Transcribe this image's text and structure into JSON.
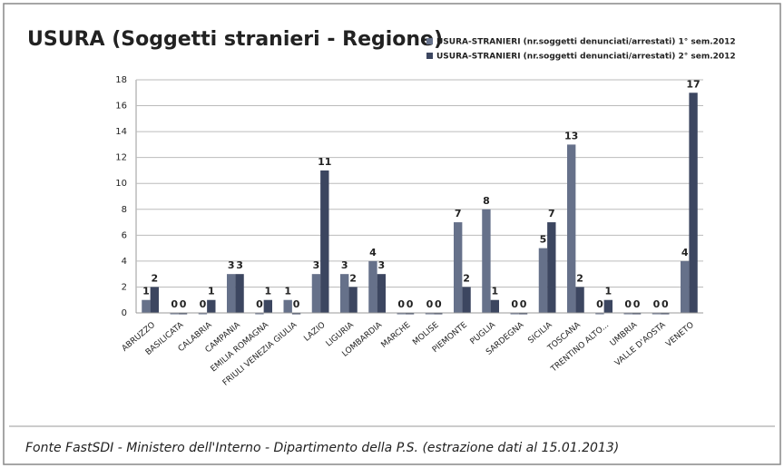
{
  "chart_data": {
    "type": "bar",
    "title": "USURA (Soggetti stranieri - Regione)",
    "source": "Fonte FastSDI - Ministero dell'Interno - Dipartimento della P.S. (estrazione dati al 15.01.2013)",
    "categories": [
      "ABRUZZO",
      "BASILICATA",
      "CALABRIA",
      "CAMPANIA",
      "EMILIA ROMAGNA",
      "FRIULI VENEZIA GIULIA",
      "LAZIO",
      "LIGURIA",
      "LOMBARDIA",
      "MARCHE",
      "MOLISE",
      "PIEMONTE",
      "PUGLIA",
      "SARDEGNA",
      "SICILIA",
      "TOSCANA",
      "TRENTINO ALTO...",
      "UMBRIA",
      "VALLE D'AOSTA",
      "VENETO"
    ],
    "series": [
      {
        "name": "USURA-STRANIERI (nr.soggetti denunciati/arrestati) 1° sem.2012",
        "color": "#66718a",
        "values": [
          1,
          0,
          0,
          3,
          0,
          1,
          3,
          3,
          4,
          0,
          0,
          7,
          8,
          0,
          5,
          13,
          0,
          0,
          0,
          4
        ]
      },
      {
        "name": "USURA-STRANIERI (nr.soggetti denunciati/arrestati) 2° sem.2012",
        "color": "#3c4660",
        "values": [
          2,
          0,
          1,
          3,
          1,
          0,
          11,
          2,
          3,
          0,
          0,
          2,
          1,
          0,
          7,
          2,
          1,
          0,
          0,
          17
        ]
      }
    ],
    "ylim": [
      0,
      18
    ],
    "yticks": [
      0,
      2,
      4,
      6,
      8,
      10,
      12,
      14,
      16,
      18
    ],
    "grid": true,
    "legend": "top-right"
  }
}
